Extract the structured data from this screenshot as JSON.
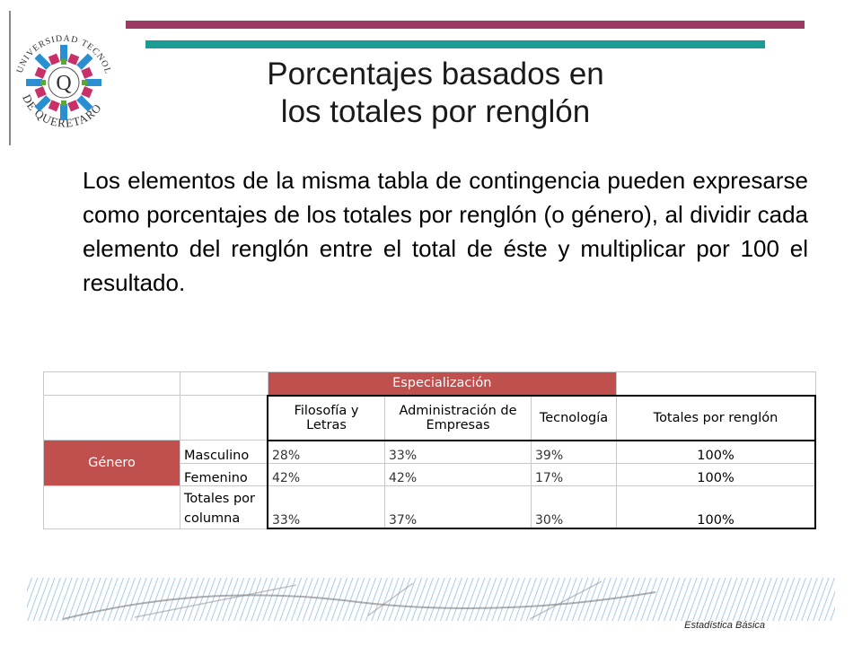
{
  "logo": {
    "top_text": "UNIVERSIDAD TECNOLÓGICA",
    "center_letter": "Q",
    "bottom_text": "DE QUERETARO"
  },
  "title": {
    "line1": "Porcentajes basados en",
    "line2": "los totales por renglón"
  },
  "body": "Los elementos de la misma tabla de contingencia pueden expresarse como porcentajes de los totales por renglón (o género), al dividir cada elemento del renglón entre el total de éste y multiplicar por 100 el resultado.",
  "table": {
    "group_header": "Especialización",
    "row_group": "Género",
    "columns": [
      "Filosofía y Letras",
      "Administración de Empresas",
      "Tecnología",
      "Totales por renglón"
    ],
    "rows": [
      {
        "label": "Masculino",
        "values": [
          "28%",
          "33%",
          "39%",
          "100%"
        ]
      },
      {
        "label": "Femenino",
        "values": [
          "42%",
          "42%",
          "17%",
          "100%"
        ]
      },
      {
        "label": "Totales por columna",
        "values": [
          "33%",
          "37%",
          "30%",
          "100%"
        ]
      }
    ]
  },
  "footer": {
    "label": "Estadística Básica"
  },
  "colors": {
    "magenta_bar": "#9c3a63",
    "teal_bar": "#1a9c95",
    "header_red": "#c0504d"
  }
}
